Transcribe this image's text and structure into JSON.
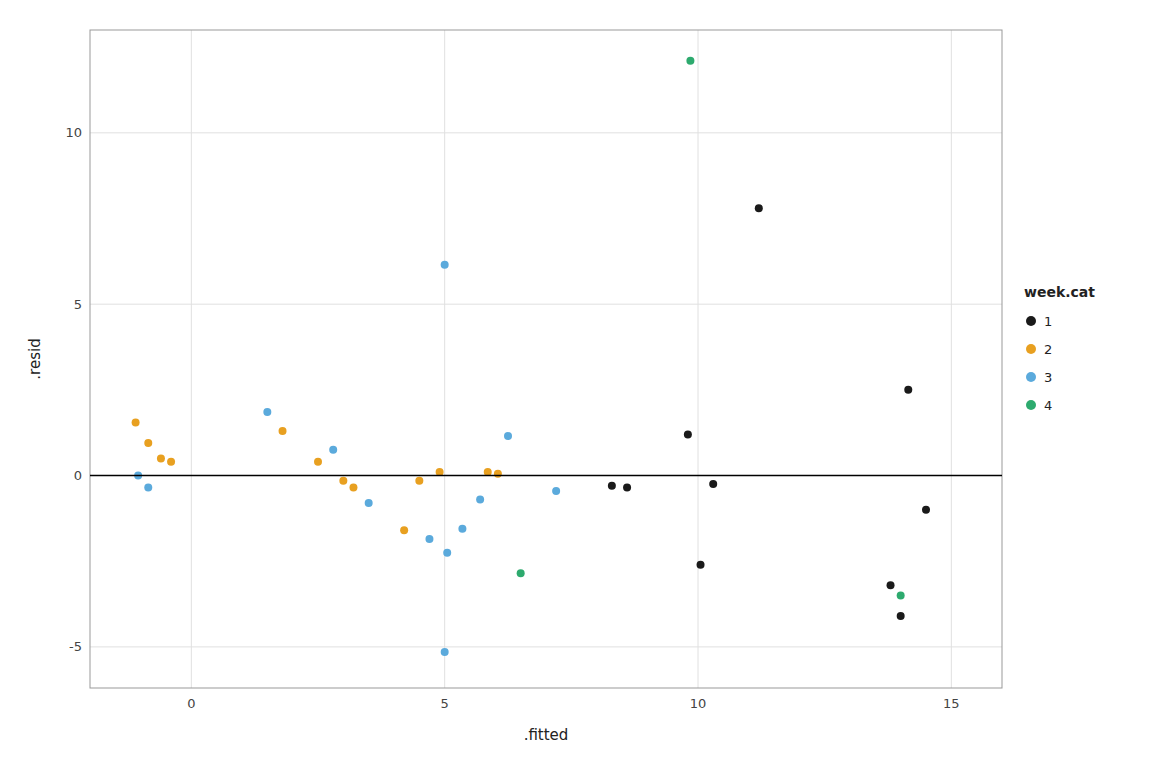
{
  "chart_data": {
    "type": "scatter",
    "xlabel": ".fitted",
    "ylabel": ".resid",
    "legend_title": "week.cat",
    "legend": "right",
    "grid": true,
    "xlim": [
      -2,
      16
    ],
    "ylim": [
      -6.2,
      13.0
    ],
    "xticks": [
      0,
      5,
      10,
      15
    ],
    "yticks": [
      -5,
      0,
      5,
      10
    ],
    "hline": 0,
    "series": [
      {
        "name": "1",
        "color": "#1a1a1a",
        "x": [
          8.3,
          8.6,
          9.8,
          10.05,
          10.3,
          11.2,
          13.8,
          14.0,
          14.15,
          14.5
        ],
        "values": [
          -0.3,
          -0.35,
          1.2,
          -2.6,
          -0.25,
          7.8,
          -3.2,
          -4.1,
          2.5,
          -1.0
        ]
      },
      {
        "name": "2",
        "color": "#E8A020",
        "x": [
          -1.1,
          -0.85,
          -0.6,
          -0.4,
          1.8,
          2.5,
          3.0,
          3.2,
          4.2,
          4.5,
          4.9,
          5.85,
          6.05
        ],
        "values": [
          1.55,
          0.95,
          0.5,
          0.4,
          1.3,
          0.4,
          -0.15,
          -0.35,
          -1.6,
          -0.15,
          0.1,
          0.1,
          0.05
        ]
      },
      {
        "name": "3",
        "color": "#5BAADC",
        "x": [
          -1.05,
          -0.85,
          1.5,
          2.8,
          3.5,
          4.7,
          5.0,
          5.05,
          5.35,
          5.7,
          6.25,
          7.2,
          5.0
        ],
        "values": [
          0.0,
          -0.35,
          1.85,
          0.75,
          -0.8,
          -1.85,
          6.15,
          -2.25,
          -1.55,
          -0.7,
          1.15,
          -0.45,
          -5.15
        ]
      },
      {
        "name": "4",
        "color": "#2DAA6E",
        "x": [
          9.85,
          6.5,
          14.0
        ],
        "values": [
          12.1,
          -2.85,
          -3.5
        ]
      }
    ]
  }
}
